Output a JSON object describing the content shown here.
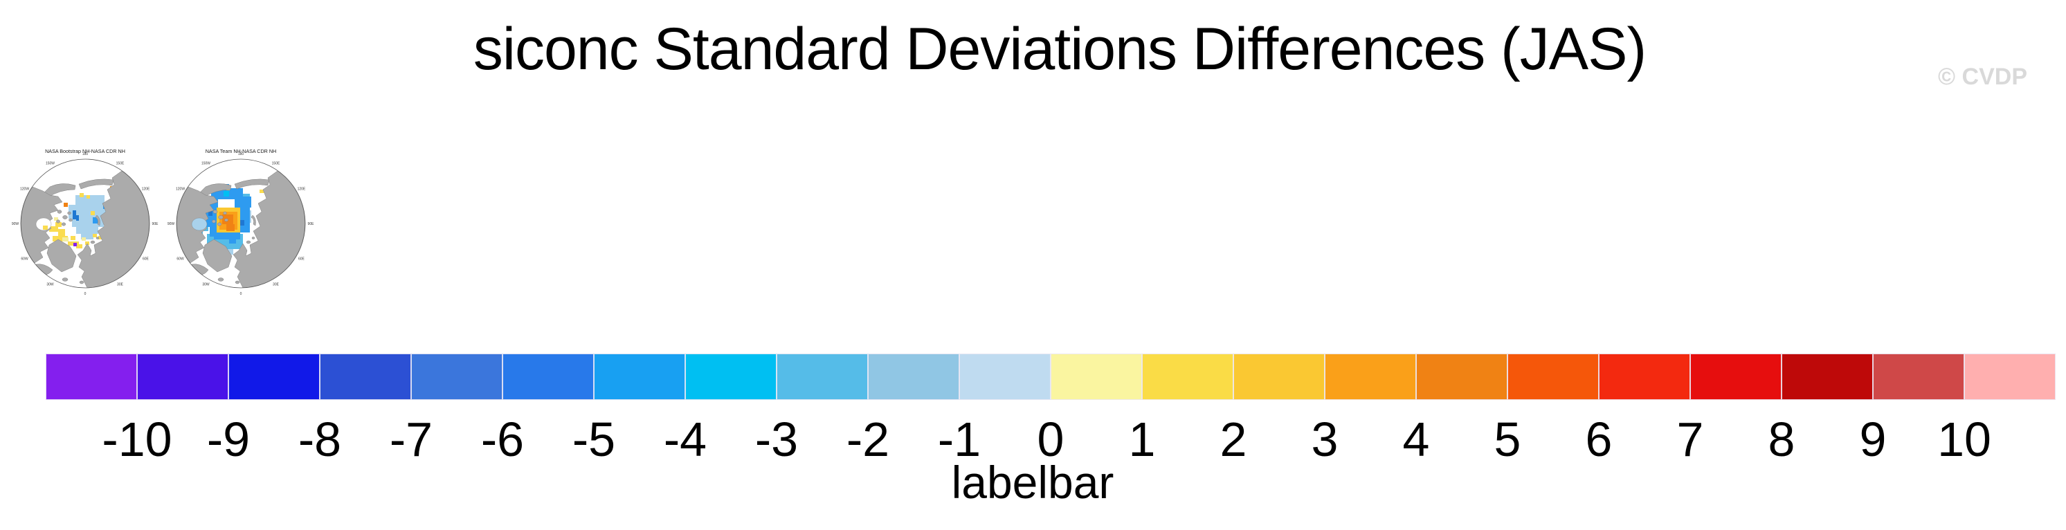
{
  "title": "siconc Standard Deviations Differences (JAS)",
  "watermark": "© CVDP",
  "panels": [
    {
      "title": "NASA Bootstrap NH-NASA CDR NH",
      "ring_labels": [
        "180",
        "150E",
        "120E",
        "90E",
        "60E",
        "30E",
        "0",
        "30W",
        "60W",
        "90W",
        "120W",
        "150W"
      ],
      "hudson_fill": "#FFFFFF",
      "cells_pre": [
        [
          95,
          72,
          42,
          14,
          "lightblue"
        ],
        [
          85,
          86,
          54,
          20,
          "lightblue"
        ],
        [
          90,
          106,
          46,
          12,
          "lightblue"
        ],
        [
          96,
          118,
          32,
          10,
          "lightblue"
        ],
        [
          103,
          128,
          18,
          8,
          "lightblue"
        ],
        [
          137,
          90,
          8,
          10,
          "lightblue"
        ],
        [
          101,
          69,
          6,
          6,
          "yellow"
        ],
        [
          111,
          72,
          5,
          5,
          "yellow"
        ],
        [
          117,
          95,
          6,
          6,
          "yellow"
        ],
        [
          136,
          99,
          6,
          6,
          "yellow"
        ],
        [
          140,
          116,
          6,
          6,
          "yellow"
        ],
        [
          128,
          131,
          6,
          5,
          "yellow"
        ],
        [
          109,
          139,
          6,
          5,
          "yellow"
        ],
        [
          96,
          143,
          9,
          6,
          "yellow"
        ],
        [
          84,
          139,
          16,
          6,
          "yellow"
        ],
        [
          62,
          131,
          22,
          8,
          "yellow"
        ],
        [
          70,
          121,
          10,
          11,
          "yellow"
        ],
        [
          57,
          117,
          13,
          8,
          "yellow"
        ],
        [
          66,
          111,
          9,
          7,
          "yellow"
        ],
        [
          88,
          131,
          7,
          6,
          "yellow"
        ],
        [
          120,
          128,
          6,
          5,
          "yellow"
        ],
        [
          50,
          113,
          8,
          6,
          "paleyellow"
        ],
        [
          76,
          133,
          9,
          6,
          "paleyellow"
        ],
        [
          104,
          133,
          6,
          5,
          "paleyellow"
        ],
        [
          64,
          104,
          6,
          5,
          "paleyellow"
        ],
        [
          78,
          83,
          6,
          6,
          "darkorange"
        ],
        [
          145,
          59,
          8,
          8,
          "orange"
        ],
        [
          91,
          94,
          5,
          13,
          "deepblue"
        ],
        [
          96,
          101,
          4,
          8,
          "deepblue"
        ],
        [
          120,
          104,
          8,
          9,
          "dodger"
        ],
        [
          135,
          87,
          5,
          5,
          "dodger"
        ],
        [
          92,
          141,
          5,
          5,
          "purple"
        ]
      ],
      "cells_post": [
        [
          48,
          116,
          7,
          6,
          "yellow"
        ]
      ]
    },
    {
      "title": "NASA Team NH-NASA CDR NH",
      "ring_labels": [
        "180",
        "150E",
        "120E",
        "90E",
        "60E",
        "30E",
        "0",
        "30W",
        "60W",
        "90W",
        "120W",
        "150W"
      ],
      "hudson_fill": "#A9D2EC",
      "cells_pre": [
        [
          50,
          96,
          12,
          28,
          "skyblue"
        ],
        [
          60,
          128,
          46,
          16,
          "skyblue"
        ],
        [
          64,
          144,
          32,
          10,
          "skyblue"
        ],
        [
          96,
          138,
          16,
          12,
          "skyblue"
        ],
        [
          110,
          70,
          12,
          12,
          "skyblue"
        ],
        [
          100,
          128,
          12,
          10,
          "skyblue"
        ],
        [
          44,
          124,
          10,
          8,
          "skyblue"
        ],
        [
          46,
          96,
          8,
          10,
          "lightblue"
        ],
        [
          58,
          150,
          14,
          8,
          "lightblue"
        ],
        [
          88,
          150,
          10,
          8,
          "lightblue"
        ],
        [
          118,
          94,
          6,
          18,
          "lightblue"
        ],
        [
          66,
          62,
          46,
          16,
          "dodger"
        ],
        [
          58,
          78,
          18,
          40,
          "dodger"
        ],
        [
          100,
          74,
          24,
          16,
          "dodger"
        ],
        [
          104,
          90,
          18,
          36,
          "dodger"
        ],
        [
          70,
          114,
          38,
          22,
          "dodger"
        ],
        [
          82,
          56,
          10,
          10,
          "dodger"
        ],
        [
          92,
          134,
          10,
          8,
          "dodger"
        ],
        [
          64,
          118,
          10,
          14,
          "dodger"
        ],
        [
          84,
          66,
          8,
          8,
          "cyan"
        ],
        [
          62,
          92,
          6,
          10,
          "deepblue"
        ],
        [
          108,
          108,
          6,
          8,
          "deepblue"
        ],
        [
          74,
          90,
          34,
          36,
          "gold"
        ],
        [
          78,
          96,
          26,
          26,
          "orange"
        ],
        [
          82,
          100,
          16,
          14,
          "darkorange"
        ],
        [
          88,
          114,
          12,
          10,
          "darkorange"
        ],
        [
          58,
          148,
          6,
          5,
          "yellow"
        ],
        [
          46,
          142,
          5,
          5,
          "yellow"
        ],
        [
          136,
          64,
          7,
          5,
          "yellow"
        ],
        [
          88,
          60,
          5,
          5,
          "yellow"
        ]
      ],
      "cells_post": []
    }
  ],
  "labelbar": {
    "caption": "labelbar",
    "ticks": [
      "-10",
      "-9",
      "-8",
      "-7",
      "-6",
      "-5",
      "-4",
      "-3",
      "-2",
      "-1",
      "0",
      "1",
      "2",
      "3",
      "4",
      "5",
      "6",
      "7",
      "8",
      "9",
      "10"
    ],
    "colors": [
      "#841FEE",
      "#4A12E8",
      "#1119E8",
      "#2C50D4",
      "#3B76DC",
      "#2879EA",
      "#18A0F2",
      "#00BFF2",
      "#55BCE8",
      "#90C6E4",
      "#BFDBF0",
      "#FAF5A0",
      "#FADC46",
      "#FAC832",
      "#FAA019",
      "#F08214",
      "#F5570A",
      "#F3290F",
      "#E60E0E",
      "#BE0909",
      "#CF4848",
      "#FFAFAF"
    ]
  },
  "map_palette": {
    "land": "#ABABAB",
    "coast": "#7F7F7F",
    "lightblue": "#A9D2EC",
    "paleblue": "#BFDBF0",
    "skyblue": "#55BCE8",
    "dodger": "#2E9BF0",
    "deepblue": "#1F78D2",
    "cyan": "#00BFF2",
    "paleyellow": "#F5EE9E",
    "yellow": "#FADC50",
    "gold": "#FAC832",
    "orange": "#FAA019",
    "darkorange": "#F08214",
    "purple": "#841FEE"
  },
  "chart_data": {
    "type": "heatmap",
    "title": "siconc Standard Deviations Differences (JAS)",
    "variable": "siconc",
    "statistic": "Standard Deviations Differences",
    "season": "JAS",
    "panels": [
      {
        "name": "NASA Bootstrap NH-NASA CDR NH",
        "projection": "north polar stereographic",
        "meridian_labels": [
          "180",
          "150E",
          "120E",
          "90E",
          "60E",
          "30E",
          "0",
          "30W",
          "60W",
          "90W",
          "120W",
          "150W"
        ],
        "pattern": "pale blue (-1 to 0) differences over the central Arctic basin; scattered yellow (0 to 2) cells around the Canadian Archipelago, Baffin Bay and Kara Sea; isolated orange and dark blue cells; one purple cell near Greenland"
      },
      {
        "name": "NASA Team NH-NASA CDR NH",
        "projection": "north polar stereographic",
        "meridian_labels": [
          "180",
          "150E",
          "120E",
          "90E",
          "60E",
          "30E",
          "0",
          "30W",
          "60W",
          "90W",
          "120W",
          "150W"
        ],
        "pattern": "ring of blue (-6 to -2) differences around the pole surrounding an orange/gold core (3 to 6) on the Atlantic side of the pole; pale blue fringes toward the Canadian Archipelago and Hudson Bay"
      }
    ],
    "colorbar": {
      "label": "labelbar",
      "orientation": "horizontal",
      "levels": [
        -10,
        -9,
        -8,
        -7,
        -6,
        -5,
        -4,
        -3,
        -2,
        -1,
        0,
        1,
        2,
        3,
        4,
        5,
        6,
        7,
        8,
        9,
        10
      ],
      "n_colors": 22,
      "colors": [
        "#841FEE",
        "#4A12E8",
        "#1119E8",
        "#2C50D4",
        "#3B76DC",
        "#2879EA",
        "#18A0F2",
        "#00BFF2",
        "#55BCE8",
        "#90C6E4",
        "#BFDBF0",
        "#FAF5A0",
        "#FADC46",
        "#FAC832",
        "#FAA019",
        "#F08214",
        "#F5570A",
        "#F3290F",
        "#E60E0E",
        "#BE0909",
        "#CF4848",
        "#FFAFAF"
      ]
    }
  }
}
